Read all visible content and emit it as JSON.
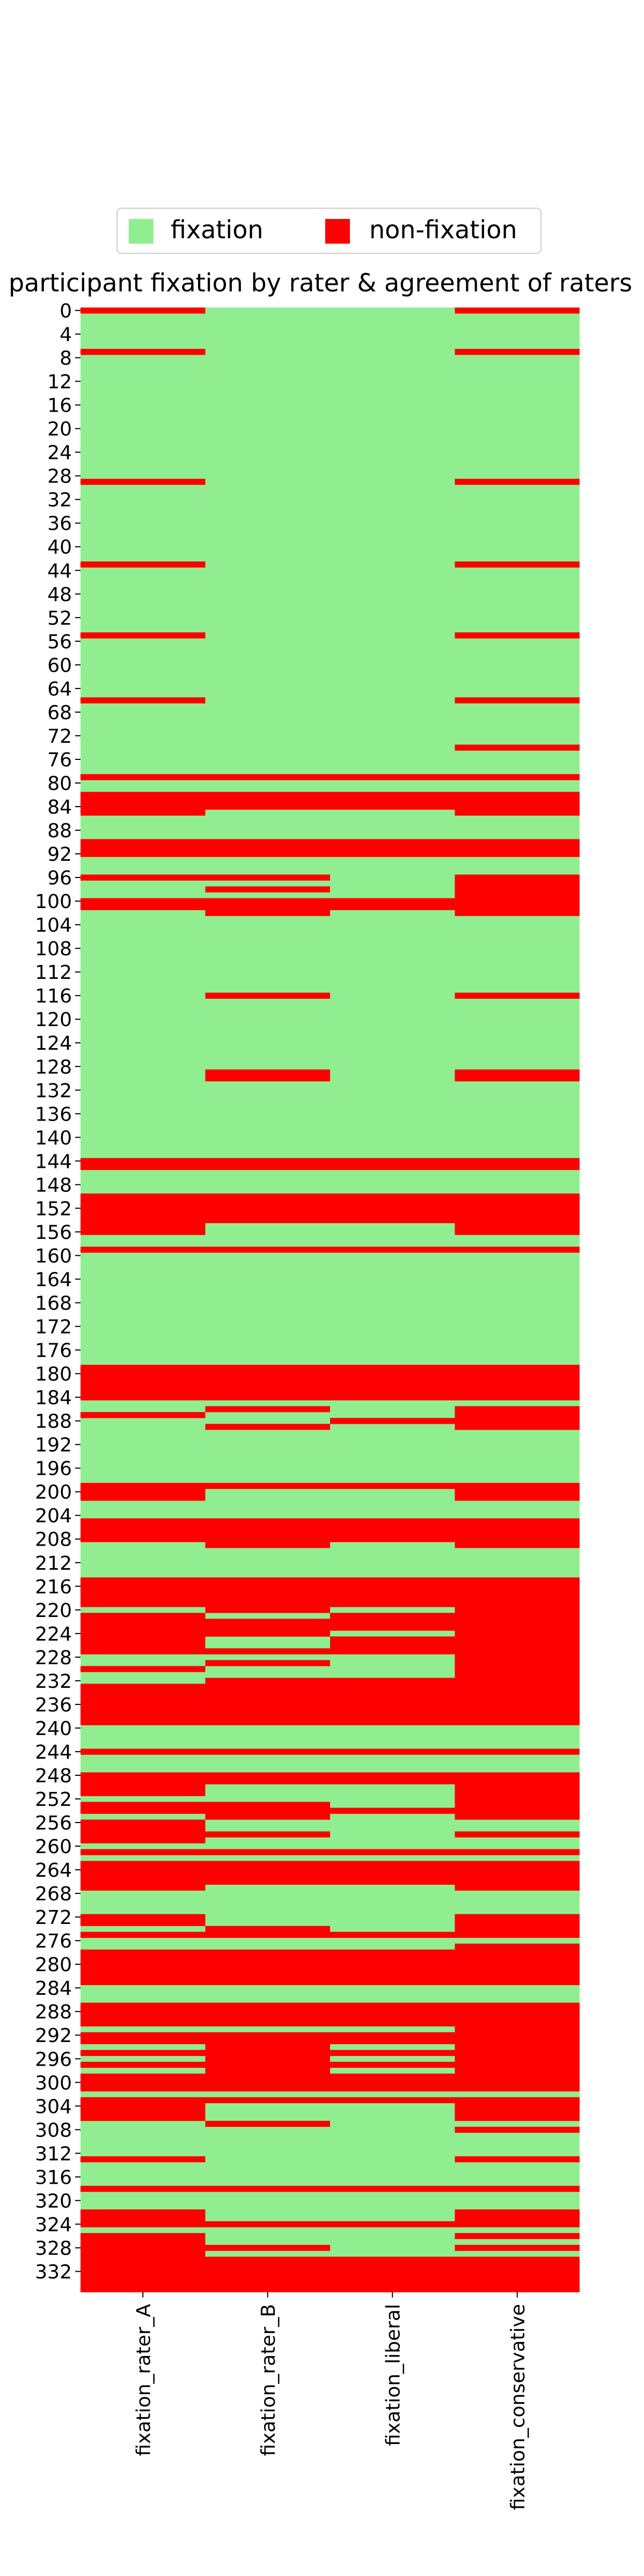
{
  "chart_data": {
    "type": "heatmap",
    "title": "participant fixation by rater & agreement of raters",
    "columns": [
      "fixation_rater_A",
      "fixation_rater_B",
      "fixation_liberal",
      "fixation_conservative"
    ],
    "row_count": 336,
    "row_tick_labels": [
      "0",
      "4",
      "8",
      "12",
      "16",
      "20",
      "24",
      "28",
      "32",
      "36",
      "40",
      "44",
      "48",
      "52",
      "56",
      "60",
      "64",
      "68",
      "72",
      "76",
      "80",
      "84",
      "88",
      "92",
      "96",
      "100",
      "104",
      "108",
      "112",
      "116",
      "120",
      "124",
      "128",
      "132",
      "136",
      "140",
      "144",
      "148",
      "152",
      "156",
      "160",
      "164",
      "168",
      "172",
      "176",
      "180",
      "184",
      "188",
      "192",
      "196",
      "200",
      "204",
      "208",
      "212",
      "216",
      "220",
      "224",
      "228",
      "232",
      "236",
      "240",
      "244",
      "248",
      "252",
      "256",
      "260",
      "264",
      "268",
      "272",
      "276",
      "280",
      "284",
      "288",
      "292",
      "296",
      "300",
      "304",
      "308",
      "312",
      "316",
      "320",
      "324",
      "328",
      "332"
    ],
    "legend": [
      {
        "label": "fixation",
        "color": "#90ee90"
      },
      {
        "label": "non-fixation",
        "color": "#ff0000"
      }
    ],
    "legend_position": "top-center",
    "non_fixation_rows": {
      "fixation_rater_A": [
        [
          0,
          0
        ],
        [
          7,
          7
        ],
        [
          29,
          29
        ],
        [
          43,
          43
        ],
        [
          55,
          55
        ],
        [
          66,
          66
        ],
        [
          79,
          79
        ],
        [
          82,
          85
        ],
        [
          90,
          92
        ],
        [
          96,
          96
        ],
        [
          100,
          101
        ],
        [
          144,
          145
        ],
        [
          150,
          156
        ],
        [
          159,
          159
        ],
        [
          179,
          184
        ],
        [
          187,
          187
        ],
        [
          199,
          201
        ],
        [
          205,
          208
        ],
        [
          215,
          219
        ],
        [
          221,
          227
        ],
        [
          230,
          230
        ],
        [
          233,
          239
        ],
        [
          244,
          244
        ],
        [
          248,
          251
        ],
        [
          253,
          254
        ],
        [
          256,
          259
        ],
        [
          261,
          261
        ],
        [
          263,
          267
        ],
        [
          272,
          273
        ],
        [
          275,
          275
        ],
        [
          278,
          283
        ],
        [
          287,
          290
        ],
        [
          292,
          293
        ],
        [
          295,
          295
        ],
        [
          297,
          297
        ],
        [
          299,
          301
        ],
        [
          303,
          306
        ],
        [
          313,
          313
        ],
        [
          318,
          318
        ],
        [
          322,
          324
        ],
        [
          326,
          335
        ]
      ],
      "fixation_rater_B": [
        [
          79,
          79
        ],
        [
          82,
          84
        ],
        [
          90,
          92
        ],
        [
          96,
          96
        ],
        [
          98,
          98
        ],
        [
          100,
          102
        ],
        [
          116,
          116
        ],
        [
          129,
          130
        ],
        [
          144,
          145
        ],
        [
          150,
          154
        ],
        [
          159,
          159
        ],
        [
          179,
          184
        ],
        [
          186,
          186
        ],
        [
          189,
          189
        ],
        [
          199,
          199
        ],
        [
          205,
          209
        ],
        [
          215,
          220
        ],
        [
          222,
          224
        ],
        [
          227,
          227
        ],
        [
          229,
          229
        ],
        [
          232,
          239
        ],
        [
          244,
          244
        ],
        [
          248,
          249
        ],
        [
          253,
          255
        ],
        [
          258,
          258
        ],
        [
          261,
          261
        ],
        [
          263,
          266
        ],
        [
          274,
          275
        ],
        [
          278,
          283
        ],
        [
          287,
          290
        ],
        [
          292,
          301
        ],
        [
          303,
          303
        ],
        [
          307,
          307
        ],
        [
          318,
          318
        ],
        [
          324,
          324
        ],
        [
          328,
          328
        ],
        [
          330,
          335
        ]
      ],
      "fixation_liberal": [
        [
          79,
          79
        ],
        [
          82,
          84
        ],
        [
          90,
          92
        ],
        [
          100,
          101
        ],
        [
          144,
          145
        ],
        [
          150,
          154
        ],
        [
          159,
          159
        ],
        [
          179,
          184
        ],
        [
          188,
          188
        ],
        [
          199,
          199
        ],
        [
          205,
          208
        ],
        [
          215,
          219
        ],
        [
          221,
          223
        ],
        [
          225,
          227
        ],
        [
          232,
          239
        ],
        [
          244,
          244
        ],
        [
          248,
          249
        ],
        [
          254,
          254
        ],
        [
          261,
          261
        ],
        [
          263,
          266
        ],
        [
          275,
          275
        ],
        [
          278,
          283
        ],
        [
          287,
          290
        ],
        [
          292,
          293
        ],
        [
          295,
          295
        ],
        [
          297,
          297
        ],
        [
          299,
          301
        ],
        [
          303,
          303
        ],
        [
          318,
          318
        ],
        [
          324,
          324
        ],
        [
          330,
          335
        ]
      ],
      "fixation_conservative": [
        [
          0,
          0
        ],
        [
          7,
          7
        ],
        [
          29,
          29
        ],
        [
          43,
          43
        ],
        [
          55,
          55
        ],
        [
          66,
          66
        ],
        [
          74,
          74
        ],
        [
          79,
          79
        ],
        [
          82,
          85
        ],
        [
          90,
          92
        ],
        [
          96,
          99
        ],
        [
          100,
          102
        ],
        [
          116,
          116
        ],
        [
          129,
          130
        ],
        [
          144,
          145
        ],
        [
          150,
          156
        ],
        [
          159,
          159
        ],
        [
          179,
          184
        ],
        [
          186,
          189
        ],
        [
          199,
          201
        ],
        [
          205,
          209
        ],
        [
          215,
          239
        ],
        [
          244,
          244
        ],
        [
          248,
          255
        ],
        [
          258,
          258
        ],
        [
          261,
          261
        ],
        [
          263,
          267
        ],
        [
          272,
          275
        ],
        [
          277,
          283
        ],
        [
          287,
          301
        ],
        [
          303,
          306
        ],
        [
          308,
          308
        ],
        [
          313,
          313
        ],
        [
          318,
          318
        ],
        [
          322,
          324
        ],
        [
          326,
          326
        ],
        [
          328,
          328
        ],
        [
          330,
          335
        ]
      ]
    }
  }
}
